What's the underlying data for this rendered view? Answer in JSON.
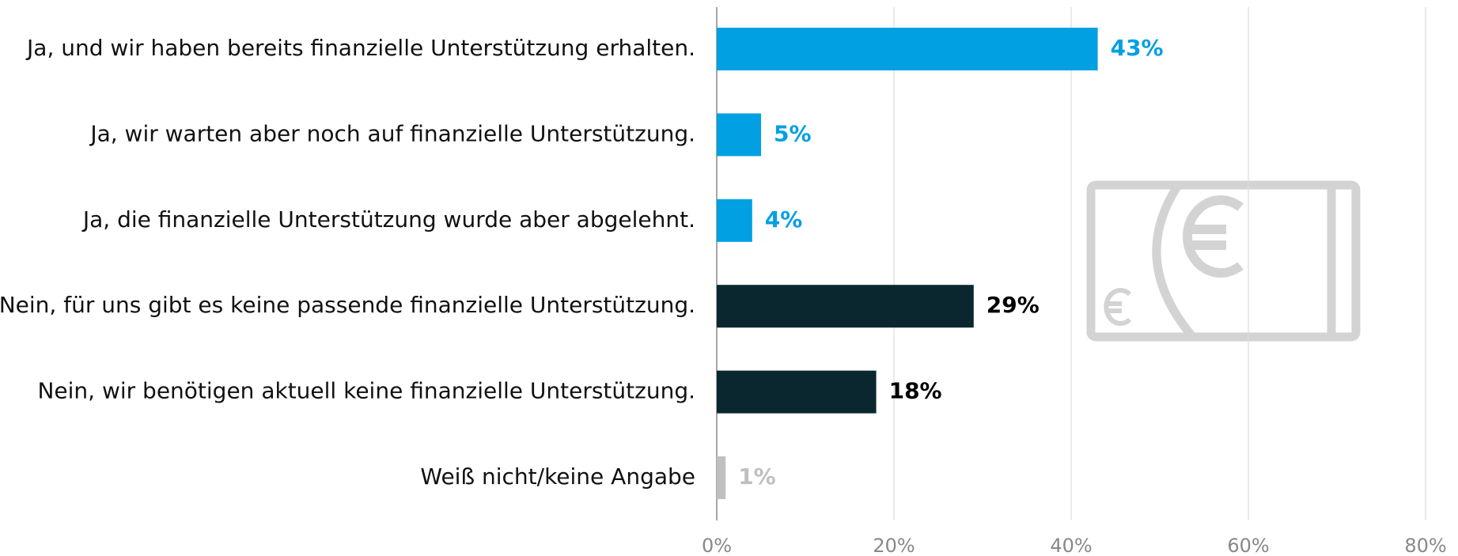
{
  "chart_data": {
    "type": "bar",
    "orientation": "horizontal",
    "categories": [
      "Ja, und wir haben bereits finanzielle Unterstützung erhalten.",
      "Ja, wir warten aber noch auf finanzielle Unterstützung.",
      "Ja, die finanzielle Unterstützung wurde aber abgelehnt.",
      "Nein, für uns gibt es keine passende finanzielle Unterstützung.",
      "Nein, wir benötigen aktuell keine finanzielle Unterstützung.",
      "Weiß nicht/keine Angabe"
    ],
    "values": [
      43,
      5,
      4,
      29,
      18,
      1
    ],
    "value_labels": [
      "43%",
      "5%",
      "4%",
      "29%",
      "18%",
      "1%"
    ],
    "colors": [
      "#00a0e3",
      "#00a0e3",
      "#00a0e3",
      "#0a2730",
      "#0a2730",
      "#bfbfbf"
    ],
    "xlim": [
      0,
      80
    ],
    "xticks": [
      {
        "value": 0,
        "label": "0%"
      },
      {
        "value": 20,
        "label": "20%"
      },
      {
        "value": 40,
        "label": "40%"
      },
      {
        "value": 60,
        "label": "60%"
      },
      {
        "value": 80,
        "label": "80%"
      }
    ],
    "grid": true
  }
}
